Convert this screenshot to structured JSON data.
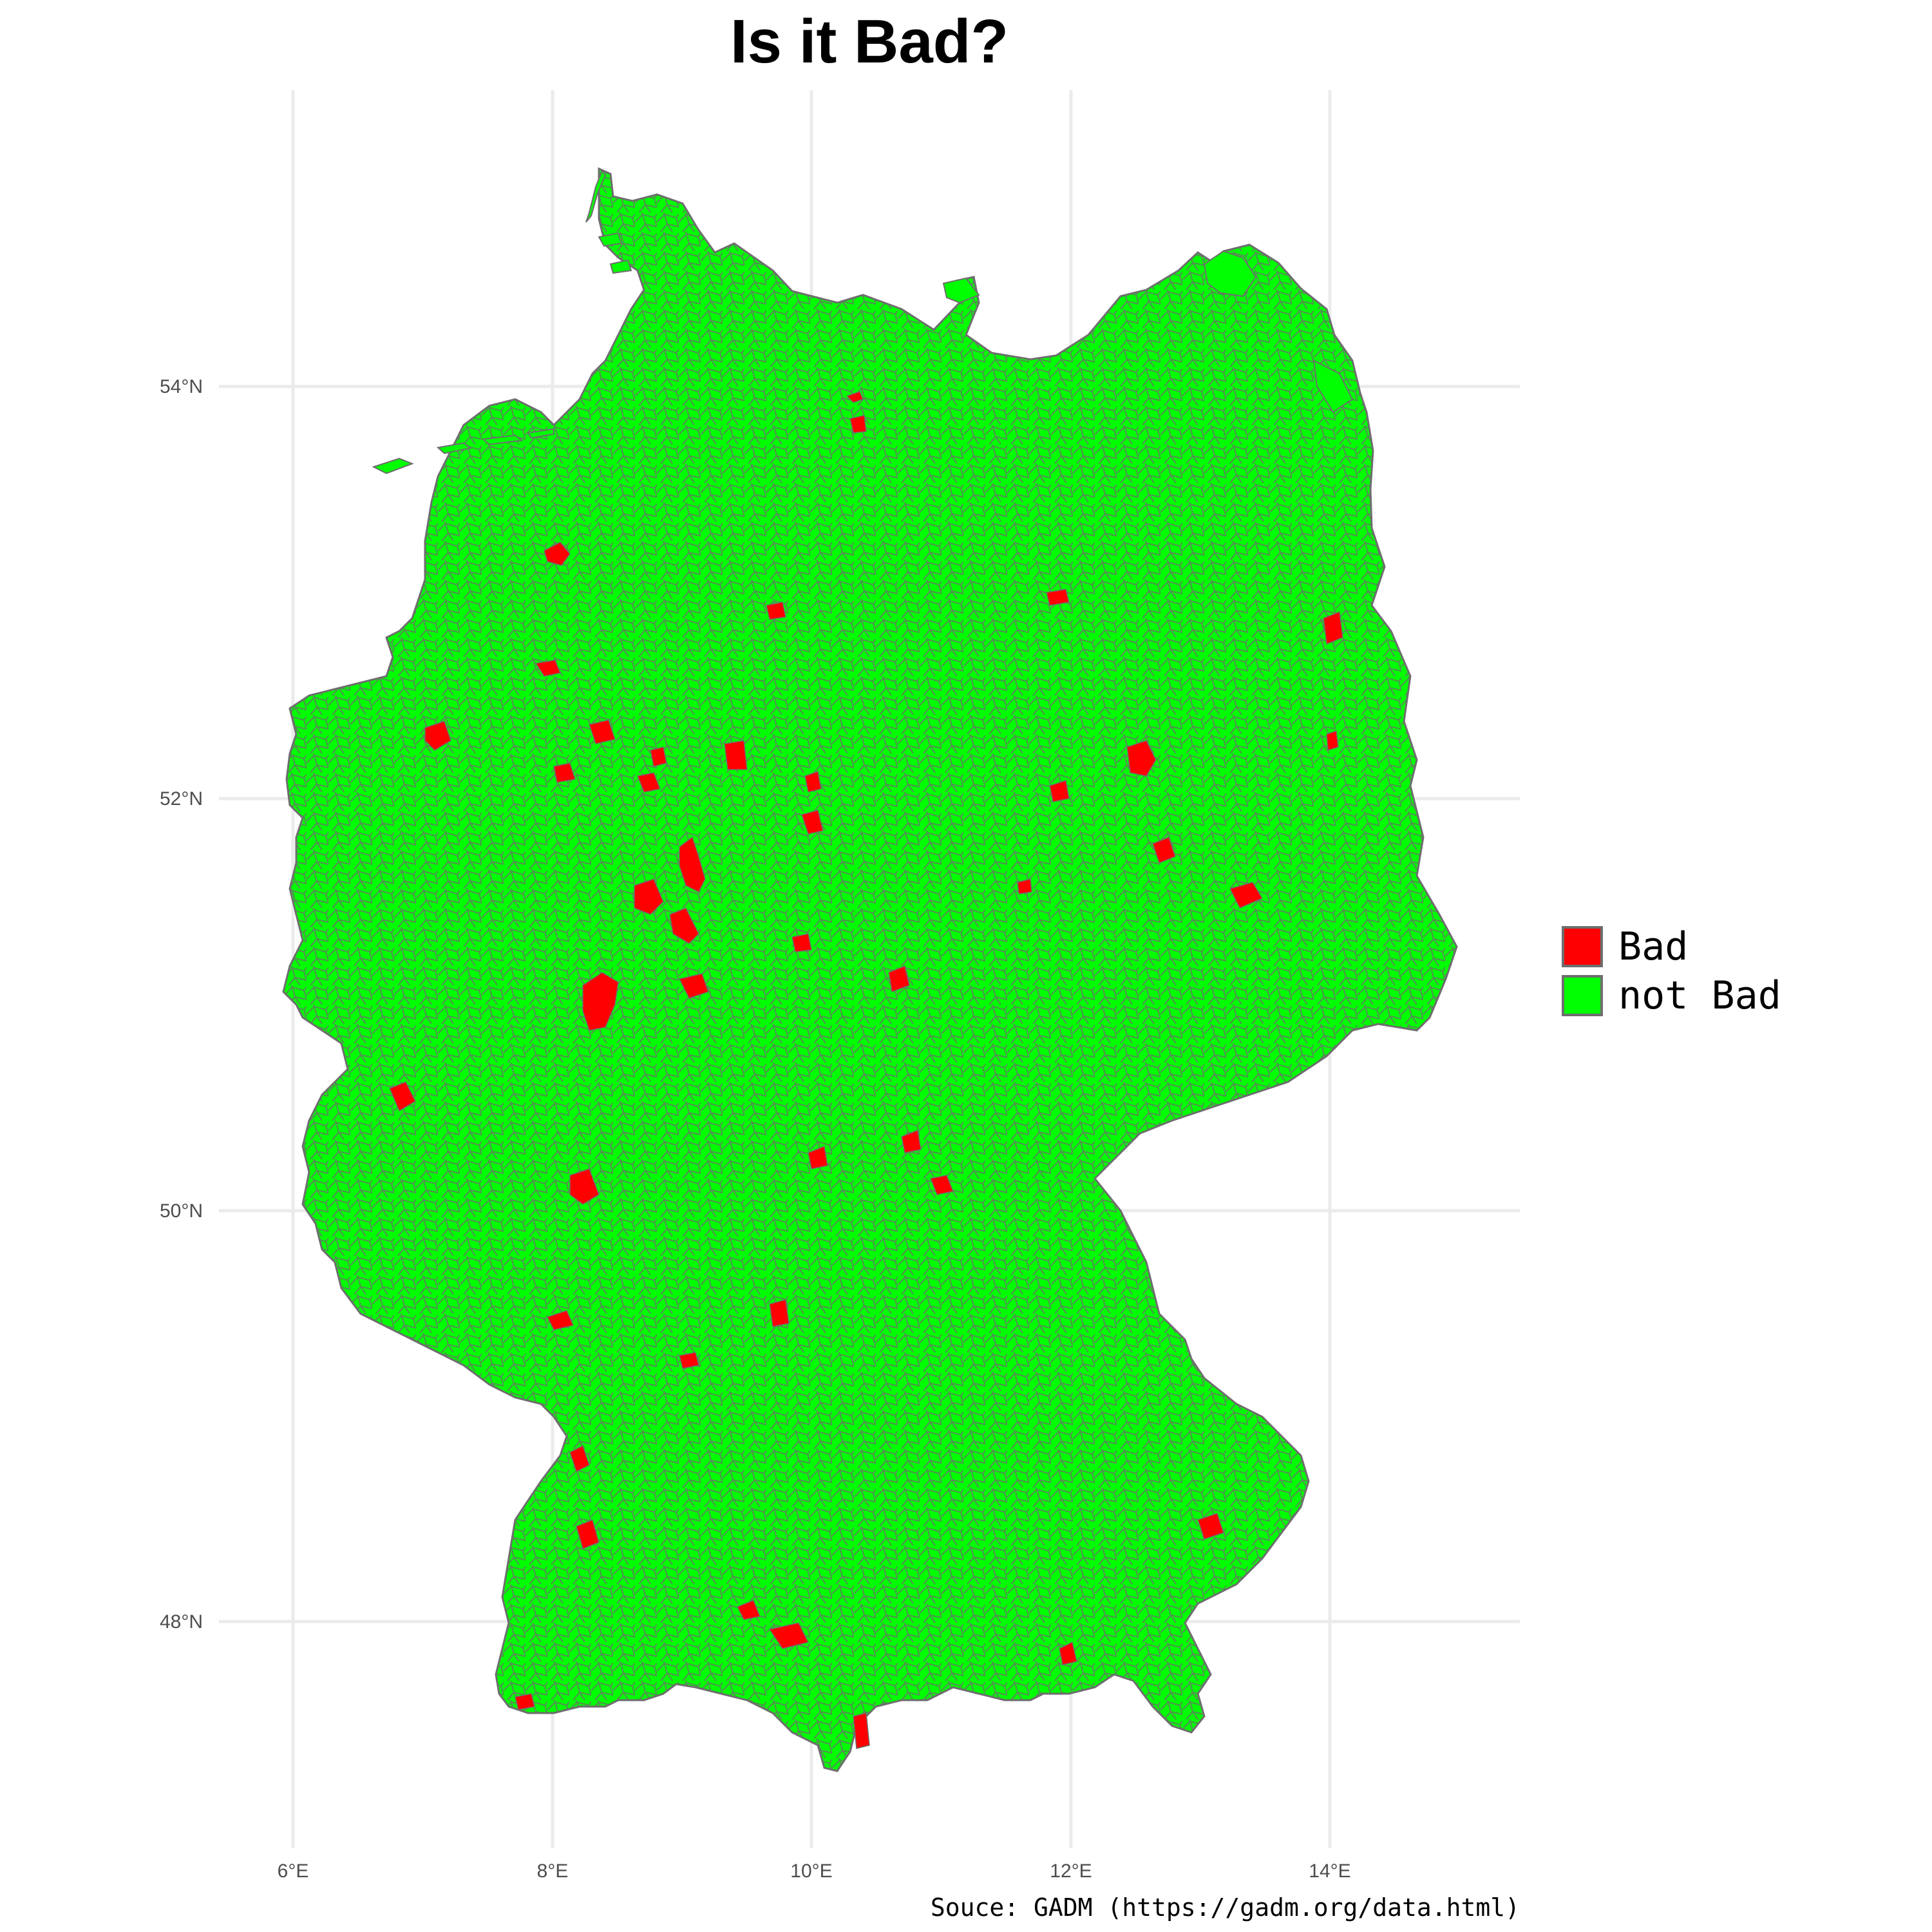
{
  "title": "Is it Bad?",
  "caption": "Souce: GADM (https://gadm.org/data.html)",
  "legend": {
    "items": [
      {
        "label": "Bad",
        "color": "#ff0000"
      },
      {
        "label": "not Bad",
        "color": "#00ff00"
      }
    ]
  },
  "colors": {
    "bad": "#ff0000",
    "not_bad": "#00ff00",
    "border": "#6e6e6e",
    "grid": "#ebebeb",
    "axis_text": "#4d4d4d"
  },
  "axes": {
    "x_ticks": [
      "6°E",
      "8°E",
      "10°E",
      "12°E",
      "14°E"
    ],
    "y_ticks": [
      "54°N",
      "52°N",
      "50°N",
      "48°N"
    ]
  },
  "map": {
    "region": "Germany",
    "boundaries": "municipalities"
  }
}
